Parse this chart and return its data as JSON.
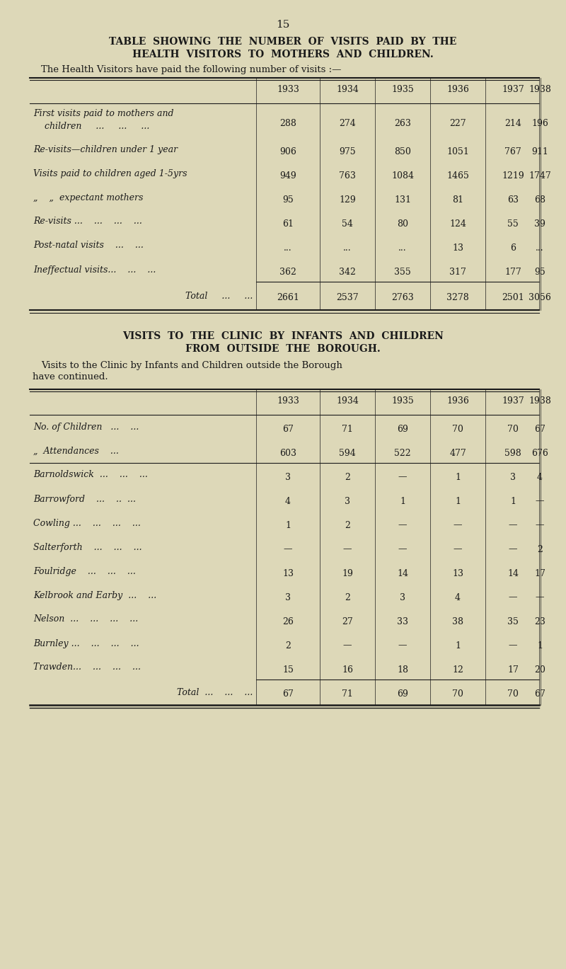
{
  "bg_color": "#ddd8b8",
  "text_color": "#1a1a1a",
  "page_number": "15",
  "title1": "TABLE  SHOWING  THE  NUMBER  OF  VISITS  PAID  BY  THE",
  "title2": "HEALTH  VISITORS  TO  MOTHERS  AND  CHILDREN.",
  "subtitle": "The Health Visitors have paid the following number of visits :—",
  "table1_years": [
    "1933",
    "1934",
    "1935",
    "1936",
    "1937",
    "1938"
  ],
  "table1_rows": [
    {
      "label1": "First visits paid to mothers and",
      "label2": "    children     ...     ...     ...",
      "values": [
        "288",
        "274",
        "263",
        "227",
        "214",
        "196"
      ],
      "two_line": true
    },
    {
      "label1": "Re-visits—children under 1 year",
      "label2": "",
      "values": [
        "906",
        "975",
        "850",
        "1051",
        "767",
        "911"
      ],
      "two_line": false
    },
    {
      "label1": "Visits paid to children aged 1-5yrs",
      "label2": "",
      "values": [
        "949",
        "763",
        "1084",
        "1465",
        "1219",
        "1747"
      ],
      "two_line": false
    },
    {
      "label1": "„    „  expectant mothers",
      "label2": "",
      "values": [
        "95",
        "129",
        "131",
        "81",
        "63",
        "68"
      ],
      "two_line": false
    },
    {
      "label1": "Re-visits ...    ...    ...    ...",
      "label2": "",
      "values": [
        "61",
        "54",
        "80",
        "124",
        "55",
        "39"
      ],
      "two_line": false
    },
    {
      "label1": "Post-natal visits    ...    ...",
      "label2": "",
      "values": [
        "...",
        "...",
        "...",
        "13",
        "6",
        "..."
      ],
      "two_line": false
    },
    {
      "label1": "Ineffectual visits...    ...    ...",
      "label2": "",
      "values": [
        "362",
        "342",
        "355",
        "317",
        "177",
        "95"
      ],
      "two_line": false
    }
  ],
  "table1_total": [
    "2661",
    "2537",
    "2763",
    "3278",
    "2501",
    "3056"
  ],
  "section2_title1": "VISITS  TO  THE  CLINIC  BY  INFANTS  AND  CHILDREN",
  "section2_title2": "FROM  OUTSIDE  THE  BOROUGH.",
  "section2_subtitle1": "Visits to the Clinic by Infants and Children outside the Borough",
  "section2_subtitle2": "have continued.",
  "table2_years": [
    "1933",
    "1934",
    "1935",
    "1936",
    "1937",
    "1938"
  ],
  "table2_header_rows": [
    {
      "label": "No. of Children   ...    ...",
      "values": [
        "67",
        "71",
        "69",
        "70",
        "70",
        "67"
      ]
    },
    {
      "label": "„  Attendances    ...",
      "values": [
        "603",
        "594",
        "522",
        "477",
        "598",
        "676"
      ]
    }
  ],
  "table2_rows": [
    {
      "label": "Barnoldswick  ...    ...    ...",
      "values": [
        "3",
        "2",
        "—",
        "1",
        "3",
        "4"
      ]
    },
    {
      "label": "Barrowford    ...    ..  ...",
      "values": [
        "4",
        "3",
        "1",
        "1",
        "1",
        "—"
      ]
    },
    {
      "label": "Cowling ...    ...    ...    ...",
      "values": [
        "1",
        "2",
        "—",
        "—",
        "—",
        "—"
      ]
    },
    {
      "label": "Salterforth    ...    ...    ...",
      "values": [
        "—",
        "—",
        "—",
        "—",
        "—",
        "2"
      ]
    },
    {
      "label": "Foulridge    ...    ...    ...",
      "values": [
        "13",
        "19",
        "14",
        "13",
        "14",
        "17"
      ]
    },
    {
      "label": "Kelbrook and Earby  ...    ...",
      "values": [
        "3",
        "2",
        "3",
        "4",
        "—",
        "—"
      ]
    },
    {
      "label": "Nelson  ...    ...    ...    ...",
      "values": [
        "26",
        "27",
        "33",
        "38",
        "35",
        "23"
      ]
    },
    {
      "label": "Burnley ...    ...    ...    ...",
      "values": [
        "2",
        "—",
        "—",
        "1",
        "—",
        "1"
      ]
    },
    {
      "label": "Trawden...    ...    ...    ...",
      "values": [
        "15",
        "16",
        "18",
        "12",
        "17",
        "20"
      ]
    }
  ],
  "table2_total": [
    "67",
    "71",
    "69",
    "70",
    "70",
    "67"
  ]
}
